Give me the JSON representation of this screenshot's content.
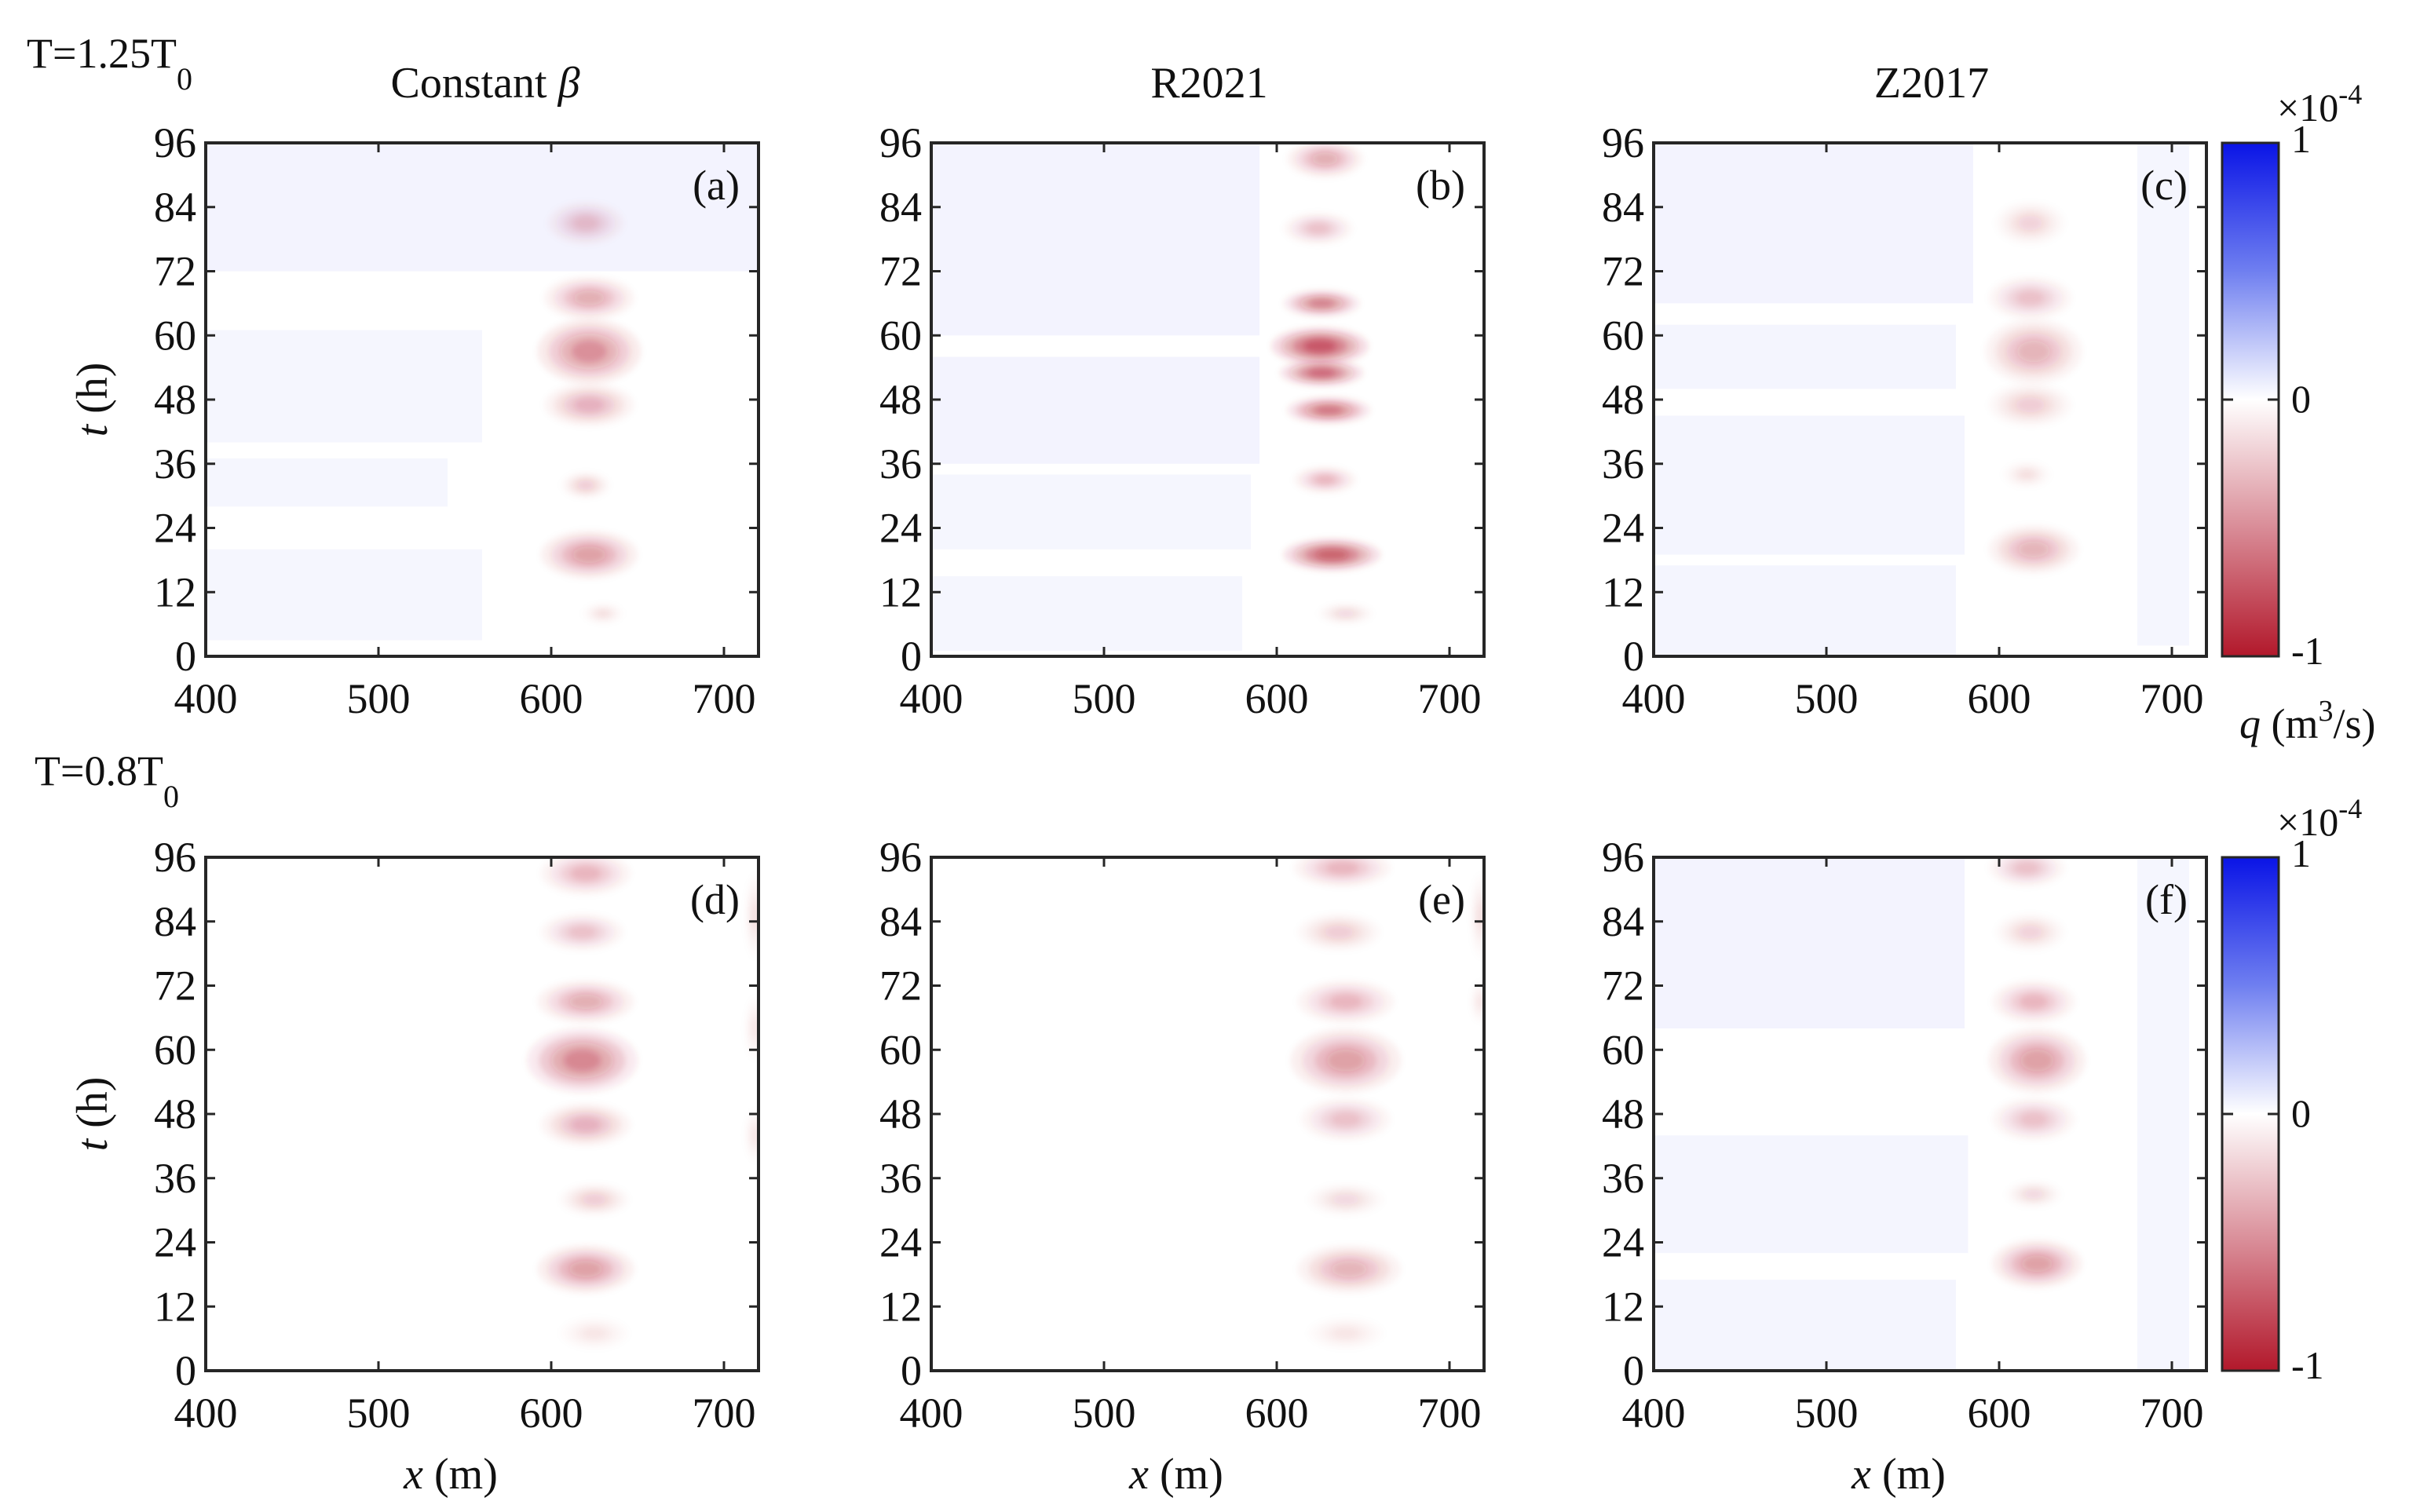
{
  "chart_data": {
    "type": "heatmap",
    "row_labels": [
      {
        "main": "T=1.25T",
        "sub": "0"
      },
      {
        "main": "T=0.8T",
        "sub": "0"
      }
    ],
    "column_titles": [
      {
        "text": "Constant ",
        "symbol": "β"
      },
      {
        "text": "R2021",
        "symbol": ""
      },
      {
        "text": "Z2017",
        "symbol": ""
      }
    ],
    "xlabel": {
      "var": "x",
      "unit": " (m)"
    },
    "ylabel": {
      "var": "t",
      "unit": " (h)"
    },
    "xlim": [
      400,
      720
    ],
    "ylim": [
      0,
      96
    ],
    "xticks": [
      400,
      500,
      600,
      700
    ],
    "yticks": [
      0,
      12,
      24,
      36,
      48,
      60,
      72,
      84,
      96
    ],
    "colorbar": {
      "min": -1,
      "max": 1,
      "tick_labels": [
        "1",
        "0",
        "-1"
      ],
      "scale_base": "×10",
      "scale_exp": "-4",
      "label_var": "q",
      "label_unit_pre": " (m",
      "label_unit_sup": "3",
      "label_unit_post": "/s)",
      "colors": {
        "positive": "#0a14e6",
        "zero": "#ffffff",
        "negative": "#b2182b"
      }
    },
    "panels": [
      {
        "label": "(a)",
        "blobs": [
          {
            "x": 622,
            "t": 57,
            "w": 30,
            "h": 6,
            "v": -0.22
          },
          {
            "x": 622,
            "t": 67,
            "w": 26,
            "h": 4,
            "v": -0.15
          },
          {
            "x": 622,
            "t": 47,
            "w": 26,
            "h": 4,
            "v": -0.13
          },
          {
            "x": 620,
            "t": 81,
            "w": 22,
            "h": 4,
            "v": -0.1
          },
          {
            "x": 622,
            "t": 19,
            "w": 28,
            "h": 4.5,
            "v": -0.18
          },
          {
            "x": 620,
            "t": 32,
            "w": 14,
            "h": 2.5,
            "v": -0.08
          },
          {
            "x": 630,
            "t": 8,
            "w": 12,
            "h": 2,
            "v": -0.05
          }
        ],
        "bands": [
          {
            "t0": 72,
            "t1": 96,
            "x0": 400,
            "x1": 720,
            "v": 0.05
          },
          {
            "t0": 40,
            "t1": 61,
            "x0": 400,
            "x1": 560,
            "v": 0.04
          },
          {
            "t0": 28,
            "t1": 37,
            "x0": 400,
            "x1": 540,
            "v": 0.04
          },
          {
            "t0": 3,
            "t1": 20,
            "x0": 400,
            "x1": 560,
            "v": 0.04
          }
        ]
      },
      {
        "label": "(b)",
        "blobs": [
          {
            "x": 625,
            "t": 58,
            "w": 28,
            "h": 3.5,
            "v": -0.38
          },
          {
            "x": 626,
            "t": 53,
            "w": 24,
            "h": 2.5,
            "v": -0.32
          },
          {
            "x": 630,
            "t": 46,
            "w": 24,
            "h": 2.5,
            "v": -0.28
          },
          {
            "x": 626,
            "t": 66,
            "w": 22,
            "h": 2.5,
            "v": -0.25
          },
          {
            "x": 632,
            "t": 19,
            "w": 28,
            "h": 3,
            "v": -0.36
          },
          {
            "x": 628,
            "t": 33,
            "w": 18,
            "h": 2.5,
            "v": -0.12
          },
          {
            "x": 628,
            "t": 93,
            "w": 22,
            "h": 3.5,
            "v": -0.15
          },
          {
            "x": 624,
            "t": 80,
            "w": 20,
            "h": 3,
            "v": -0.1
          },
          {
            "x": 640,
            "t": 8,
            "w": 16,
            "h": 2,
            "v": -0.06
          }
        ],
        "bands": [
          {
            "t0": 60,
            "t1": 96,
            "x0": 400,
            "x1": 590,
            "v": 0.05
          },
          {
            "t0": 36,
            "t1": 56,
            "x0": 400,
            "x1": 590,
            "v": 0.05
          },
          {
            "t0": 20,
            "t1": 34,
            "x0": 400,
            "x1": 585,
            "v": 0.04
          },
          {
            "t0": 1,
            "t1": 15,
            "x0": 400,
            "x1": 580,
            "v": 0.04
          }
        ]
      },
      {
        "label": "(c)",
        "blobs": [
          {
            "x": 620,
            "t": 57,
            "w": 28,
            "h": 6,
            "v": -0.14
          },
          {
            "x": 618,
            "t": 67,
            "w": 24,
            "h": 4,
            "v": -0.1
          },
          {
            "x": 618,
            "t": 47,
            "w": 24,
            "h": 4,
            "v": -0.08
          },
          {
            "x": 620,
            "t": 20,
            "w": 26,
            "h": 4.5,
            "v": -0.14
          },
          {
            "x": 618,
            "t": 81,
            "w": 20,
            "h": 4,
            "v": -0.07
          },
          {
            "x": 616,
            "t": 34,
            "w": 14,
            "h": 2.5,
            "v": -0.05
          }
        ],
        "bands": [
          {
            "t0": 66,
            "t1": 96,
            "x0": 400,
            "x1": 585,
            "v": 0.05
          },
          {
            "t0": 50,
            "t1": 62,
            "x0": 400,
            "x1": 575,
            "v": 0.045
          },
          {
            "t0": 19,
            "t1": 45,
            "x0": 400,
            "x1": 580,
            "v": 0.045
          },
          {
            "t0": 0,
            "t1": 17,
            "x0": 400,
            "x1": 575,
            "v": 0.045
          },
          {
            "t0": 2,
            "t1": 96,
            "x0": 680,
            "x1": 710,
            "v": 0.04
          }
        ]
      },
      {
        "label": "(d)",
        "blobs": [
          {
            "x": 618,
            "t": 58,
            "w": 32,
            "h": 6,
            "v": -0.24
          },
          {
            "x": 620,
            "t": 69,
            "w": 28,
            "h": 4,
            "v": -0.15
          },
          {
            "x": 620,
            "t": 46,
            "w": 26,
            "h": 4,
            "v": -0.13
          },
          {
            "x": 620,
            "t": 19,
            "w": 28,
            "h": 4.5,
            "v": -0.18
          },
          {
            "x": 620,
            "t": 93,
            "w": 26,
            "h": 4,
            "v": -0.12
          },
          {
            "x": 618,
            "t": 82,
            "w": 24,
            "h": 3.5,
            "v": -0.1
          },
          {
            "x": 625,
            "t": 32,
            "w": 20,
            "h": 3,
            "v": -0.08
          },
          {
            "x": 625,
            "t": 7,
            "w": 20,
            "h": 3,
            "v": -0.04
          },
          {
            "x": 718,
            "t": 85,
            "w": 6,
            "h": 8,
            "v": -0.05
          },
          {
            "x": 718,
            "t": 64,
            "w": 6,
            "h": 6,
            "v": -0.04
          },
          {
            "x": 718,
            "t": 44,
            "w": 6,
            "h": 5,
            "v": -0.04
          }
        ],
        "bands": []
      },
      {
        "label": "(e)",
        "blobs": [
          {
            "x": 640,
            "t": 58,
            "w": 32,
            "h": 6,
            "v": -0.18
          },
          {
            "x": 640,
            "t": 69,
            "w": 28,
            "h": 4,
            "v": -0.12
          },
          {
            "x": 640,
            "t": 47,
            "w": 26,
            "h": 4,
            "v": -0.1
          },
          {
            "x": 642,
            "t": 19,
            "w": 30,
            "h": 4.5,
            "v": -0.14
          },
          {
            "x": 638,
            "t": 94,
            "w": 28,
            "h": 3.5,
            "v": -0.12
          },
          {
            "x": 636,
            "t": 82,
            "w": 24,
            "h": 3.5,
            "v": -0.08
          },
          {
            "x": 640,
            "t": 32,
            "w": 22,
            "h": 3,
            "v": -0.06
          },
          {
            "x": 640,
            "t": 7,
            "w": 22,
            "h": 3,
            "v": -0.04
          },
          {
            "x": 718,
            "t": 85,
            "w": 6,
            "h": 8,
            "v": -0.05
          },
          {
            "x": 718,
            "t": 69,
            "w": 6,
            "h": 4,
            "v": -0.04
          }
        ],
        "bands": []
      },
      {
        "label": "(f)",
        "blobs": [
          {
            "x": 622,
            "t": 58,
            "w": 28,
            "h": 6,
            "v": -0.18
          },
          {
            "x": 620,
            "t": 69,
            "w": 24,
            "h": 4,
            "v": -0.12
          },
          {
            "x": 620,
            "t": 47,
            "w": 24,
            "h": 4,
            "v": -0.1
          },
          {
            "x": 622,
            "t": 20,
            "w": 26,
            "h": 4.5,
            "v": -0.18
          },
          {
            "x": 616,
            "t": 94,
            "w": 22,
            "h": 3.5,
            "v": -0.1
          },
          {
            "x": 618,
            "t": 82,
            "w": 20,
            "h": 3.5,
            "v": -0.07
          },
          {
            "x": 620,
            "t": 33,
            "w": 16,
            "h": 2.5,
            "v": -0.06
          }
        ],
        "bands": [
          {
            "t0": 64,
            "t1": 96,
            "x0": 400,
            "x1": 580,
            "v": 0.05
          },
          {
            "t0": 22,
            "t1": 44,
            "x0": 400,
            "x1": 582,
            "v": 0.045
          },
          {
            "t0": 0,
            "t1": 17,
            "x0": 400,
            "x1": 575,
            "v": 0.045
          },
          {
            "t0": 0,
            "t1": 96,
            "x0": 680,
            "x1": 710,
            "v": 0.04
          }
        ]
      }
    ]
  }
}
